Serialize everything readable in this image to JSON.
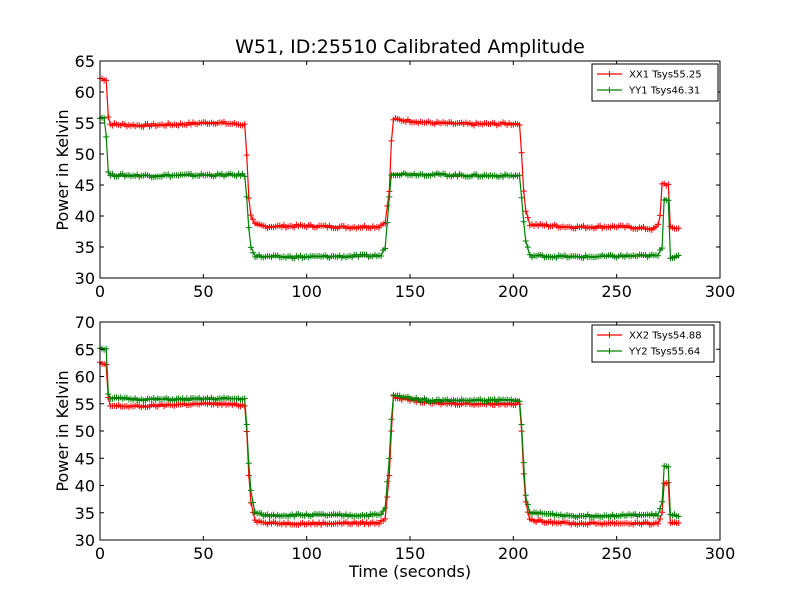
{
  "chart_data": [
    {
      "type": "line",
      "title": "W51, ID:25510 Calibrated Amplitude",
      "xlabel": "",
      "ylabel": "Power in Kelvin",
      "xlim": [
        0,
        300
      ],
      "ylim": [
        30,
        65
      ],
      "xticks": [
        0,
        50,
        100,
        150,
        200,
        250,
        300
      ],
      "yticks": [
        30,
        35,
        40,
        45,
        50,
        55,
        60,
        65
      ],
      "legend_position": "top-right",
      "grid": false,
      "series": [
        {
          "name": "XX1 Tsys55.25",
          "color": "#ff0000",
          "points": [
            [
              0,
              62.2
            ],
            [
              3,
              62.0
            ],
            [
              4,
              56
            ],
            [
              5,
              54.8
            ],
            [
              20,
              54.6
            ],
            [
              40,
              54.8
            ],
            [
              55,
              55.1
            ],
            [
              70,
              54.7
            ],
            [
              71,
              50
            ],
            [
              72,
              43
            ],
            [
              73,
              40
            ],
            [
              75,
              38.6
            ],
            [
              80,
              38.3
            ],
            [
              100,
              38.4
            ],
            [
              120,
              38.2
            ],
            [
              135,
              38.3
            ],
            [
              138,
              39
            ],
            [
              140,
              44
            ],
            [
              141,
              52
            ],
            [
              142,
              55.6
            ],
            [
              160,
              55.0
            ],
            [
              180,
              54.8
            ],
            [
              203,
              54.9
            ],
            [
              204,
              50
            ],
            [
              205,
              44
            ],
            [
              206,
              41
            ],
            [
              208,
              38.6
            ],
            [
              230,
              38.2
            ],
            [
              250,
              38.3
            ],
            [
              268,
              37.9
            ],
            [
              270,
              38.5
            ],
            [
              271,
              40
            ],
            [
              272,
              45.3
            ],
            [
              275,
              45
            ],
            [
              276,
              38.1
            ],
            [
              280,
              38.0
            ]
          ]
        },
        {
          "name": "YY1 Tsys46.31",
          "color": "#008000",
          "points": [
            [
              0,
              56
            ],
            [
              2,
              55.8
            ],
            [
              3,
              53
            ],
            [
              4,
              47
            ],
            [
              5,
              46.6
            ],
            [
              25,
              46.5
            ],
            [
              50,
              46.6
            ],
            [
              70,
              46.6
            ],
            [
              71,
              43
            ],
            [
              72,
              38
            ],
            [
              73,
              35
            ],
            [
              75,
              33.6
            ],
            [
              80,
              33.4
            ],
            [
              100,
              33.4
            ],
            [
              120,
              33.5
            ],
            [
              136,
              33.6
            ],
            [
              138,
              35
            ],
            [
              139,
              39
            ],
            [
              140,
              43
            ],
            [
              141,
              46.8
            ],
            [
              160,
              46.7
            ],
            [
              180,
              46.5
            ],
            [
              203,
              46.5
            ],
            [
              204,
              43
            ],
            [
              205,
              39
            ],
            [
              206,
              36
            ],
            [
              208,
              33.6
            ],
            [
              230,
              33.4
            ],
            [
              250,
              33.5
            ],
            [
              270,
              33.6
            ],
            [
              272,
              35
            ],
            [
              273,
              42.8
            ],
            [
              275,
              42.5
            ],
            [
              276,
              33.4
            ],
            [
              280,
              33.4
            ]
          ]
        }
      ]
    },
    {
      "type": "line",
      "title": "",
      "xlabel": "Time (seconds)",
      "ylabel": "Power in Kelvin",
      "xlim": [
        0,
        300
      ],
      "ylim": [
        30,
        70
      ],
      "xticks": [
        0,
        50,
        100,
        150,
        200,
        250,
        300
      ],
      "yticks": [
        30,
        35,
        40,
        45,
        50,
        55,
        60,
        65,
        70
      ],
      "legend_position": "top-right",
      "grid": false,
      "series": [
        {
          "name": "XX2 Tsys54.88",
          "color": "#ff0000",
          "points": [
            [
              0,
              62.5
            ],
            [
              3,
              62.0
            ],
            [
              4,
              56
            ],
            [
              5,
              54.6
            ],
            [
              20,
              54.5
            ],
            [
              40,
              54.9
            ],
            [
              55,
              55.0
            ],
            [
              70,
              54.7
            ],
            [
              71,
              50
            ],
            [
              72,
              42
            ],
            [
              73,
              37
            ],
            [
              75,
              33.6
            ],
            [
              80,
              33.1
            ],
            [
              100,
              33.0
            ],
            [
              120,
              33.1
            ],
            [
              135,
              33.1
            ],
            [
              138,
              34
            ],
            [
              140,
              42
            ],
            [
              141,
              50
            ],
            [
              142,
              56.2
            ],
            [
              160,
              55.1
            ],
            [
              180,
              55.0
            ],
            [
              203,
              55.0
            ],
            [
              204,
              50
            ],
            [
              205,
              42
            ],
            [
              206,
              37
            ],
            [
              208,
              33.6
            ],
            [
              230,
              33.0
            ],
            [
              250,
              33.1
            ],
            [
              270,
              33.0
            ],
            [
              272,
              35
            ],
            [
              273,
              40.5
            ],
            [
              275,
              40.3
            ],
            [
              276,
              33.0
            ],
            [
              280,
              33.0
            ]
          ]
        },
        {
          "name": "YY2 Tsys55.64",
          "color": "#008000",
          "points": [
            [
              0,
              65.3
            ],
            [
              3,
              65.0
            ],
            [
              4,
              57
            ],
            [
              5,
              56
            ],
            [
              20,
              55.8
            ],
            [
              40,
              55.8
            ],
            [
              55,
              55.9
            ],
            [
              70,
              55.9
            ],
            [
              71,
              51
            ],
            [
              72,
              44
            ],
            [
              73,
              39
            ],
            [
              75,
              35
            ],
            [
              80,
              34.5
            ],
            [
              100,
              34.6
            ],
            [
              120,
              34.5
            ],
            [
              136,
              34.6
            ],
            [
              138,
              36
            ],
            [
              140,
              45
            ],
            [
              141,
              52
            ],
            [
              142,
              56.5
            ],
            [
              160,
              55.6
            ],
            [
              180,
              55.6
            ],
            [
              203,
              55.7
            ],
            [
              204,
              51
            ],
            [
              205,
              44
            ],
            [
              206,
              38
            ],
            [
              208,
              35
            ],
            [
              230,
              34.4
            ],
            [
              250,
              34.5
            ],
            [
              270,
              34.6
            ],
            [
              272,
              37
            ],
            [
              273,
              43.5
            ],
            [
              275,
              43.3
            ],
            [
              276,
              34.5
            ],
            [
              280,
              34.5
            ]
          ]
        }
      ]
    }
  ]
}
